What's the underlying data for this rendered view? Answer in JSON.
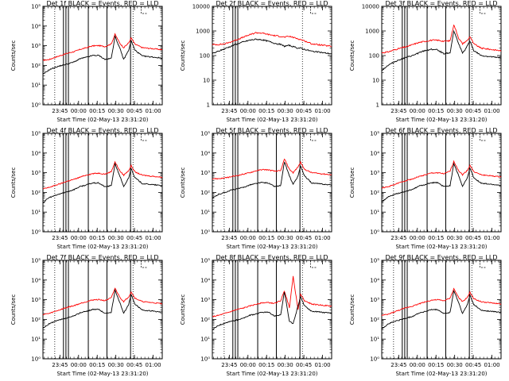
{
  "chart_data": [
    {
      "type": "line",
      "title": "Det 1f BLACK = Events, RED = LLD",
      "ylabel": "Counts/sec",
      "xlabel": "Start Time (02-May-13 23:31:20)",
      "x_ticks": [
        "23:45",
        "00:00",
        "00:15",
        "00:30",
        "00:45",
        "01:00"
      ],
      "x_tick_values": [
        13.67,
        28.67,
        43.67,
        58.67,
        73.67,
        88.67
      ],
      "xlim": [
        0,
        96
      ],
      "y_scale": "log",
      "ylim": [
        1,
        100000
      ],
      "y_ticks": [
        "10⁰",
        "10¹",
        "10²",
        "10³",
        "10⁴",
        "10⁵"
      ],
      "y_tick_values": [
        1,
        10,
        100,
        1000,
        10000,
        100000
      ],
      "dotted_lines": [
        9.5,
        20.5,
        72.5
      ],
      "solid_lines": [
        16.5,
        18.5,
        20.5,
        36.5,
        51.5,
        70.5
      ],
      "red_y": [
        180,
        200,
        260,
        330,
        420,
        500,
        650,
        800,
        980,
        1020,
        900,
        1250,
        3800,
        1300,
        800,
        1400,
        2500,
        1200,
        800
      ],
      "black_y": [
        35,
        60,
        80,
        100,
        120,
        150,
        220,
        260,
        320,
        320,
        200,
        230,
        3000,
        700,
        200,
        600,
        1800,
        600,
        300
      ],
      "series": [
        {
          "name": "BLACK = Events",
          "color": "#000000"
        },
        {
          "name": "RED = LLD",
          "color": "#ff0000"
        }
      ],
      "dashed_inset": true
    },
    {
      "type": "line",
      "title": "Det 2f BLACK = Events, RED = LLD",
      "ylabel": "Counts/sec",
      "xlabel": "Start Time (02-May-13 23:31:20)",
      "x_ticks": [
        "23:45",
        "00:00",
        "00:15",
        "00:30",
        "00:45",
        "01:00"
      ],
      "x_tick_values": [
        13.67,
        28.67,
        43.67,
        58.67,
        73.67,
        88.67
      ],
      "xlim": [
        0,
        96
      ],
      "y_scale": "log",
      "ylim": [
        1,
        10000
      ],
      "y_ticks": [
        "1",
        "10",
        "100",
        "1000",
        "10000"
      ],
      "y_tick_values": [
        1,
        10,
        100,
        1000,
        10000
      ],
      "dotted_lines": [
        9.5,
        20.5,
        72.5
      ],
      "solid_lines": [
        16.5,
        18.5,
        20.5
      ],
      "red_y": [
        280,
        280,
        300,
        360,
        450,
        560,
        700,
        850,
        820,
        720,
        650,
        600,
        560,
        600,
        550,
        480,
        450,
        400,
        300
      ],
      "black_y": [
        120,
        150,
        190,
        240,
        300,
        360,
        420,
        460,
        440,
        380,
        320,
        280,
        240,
        260,
        230,
        200,
        200,
        180,
        150
      ],
      "series": [
        {
          "name": "BLACK = Events",
          "color": "#000000"
        },
        {
          "name": "RED = LLD",
          "color": "#ff0000"
        }
      ],
      "dashed_inset": true
    },
    {
      "type": "line",
      "title": "Det 3f BLACK = Events, RED = LLD",
      "ylabel": "Counts/sec",
      "xlabel": "Start Time (02-May-13 23:31:20)",
      "x_ticks": [
        "23:45",
        "00:00",
        "00:15",
        "00:30",
        "00:45",
        "01:00"
      ],
      "x_tick_values": [
        13.67,
        28.67,
        43.67,
        58.67,
        73.67,
        88.67
      ],
      "xlim": [
        0,
        96
      ],
      "y_scale": "log",
      "ylim": [
        1,
        10000
      ],
      "y_ticks": [
        "1",
        "10",
        "100",
        "1000",
        "10000"
      ],
      "y_tick_values": [
        1,
        10,
        100,
        1000,
        10000
      ],
      "dotted_lines": [
        9.5,
        20.5,
        72.5
      ],
      "solid_lines": [
        16.5,
        18.5,
        20.5,
        36.5,
        51.5,
        70.5
      ],
      "red_y": [
        130,
        140,
        170,
        200,
        230,
        280,
        340,
        380,
        420,
        420,
        380,
        400,
        1800,
        500,
        300,
        420,
        600,
        300,
        200
      ],
      "black_y": [
        25,
        40,
        55,
        70,
        85,
        100,
        130,
        160,
        180,
        170,
        120,
        130,
        1000,
        300,
        120,
        250,
        400,
        160,
        100
      ],
      "series": [
        {
          "name": "BLACK = Events",
          "color": "#000000"
        },
        {
          "name": "RED = LLD",
          "color": "#ff0000"
        }
      ],
      "dashed_inset": true
    },
    {
      "type": "line",
      "title": "Det 4f BLACK = Events, RED = LLD",
      "ylabel": "Counts/sec",
      "xlabel": "Start Time (02-May-13 23:31:20)",
      "x_ticks": [
        "23:45",
        "00:00",
        "00:15",
        "00:30",
        "00:45",
        "01:00"
      ],
      "x_tick_values": [
        13.67,
        28.67,
        43.67,
        58.67,
        73.67,
        88.67
      ],
      "xlim": [
        0,
        96
      ],
      "y_scale": "log",
      "ylim": [
        1,
        100000
      ],
      "y_ticks": [
        "10⁰",
        "10¹",
        "10²",
        "10³",
        "10⁴",
        "10⁵"
      ],
      "y_tick_values": [
        1,
        10,
        100,
        1000,
        10000,
        100000
      ],
      "dotted_lines": [
        9.5,
        20.5,
        72.5
      ],
      "solid_lines": [
        16.5,
        18.5,
        20.5,
        36.5,
        51.5,
        70.5
      ],
      "red_y": [
        150,
        180,
        230,
        290,
        380,
        460,
        600,
        760,
        900,
        950,
        850,
        1150,
        3500,
        1200,
        750,
        1300,
        2300,
        1100,
        750
      ],
      "black_y": [
        30,
        55,
        70,
        90,
        110,
        140,
        200,
        240,
        300,
        300,
        190,
        220,
        2800,
        650,
        190,
        560,
        1700,
        560,
        280
      ],
      "series": [
        {
          "name": "BLACK = Events",
          "color": "#000000"
        },
        {
          "name": "RED = LLD",
          "color": "#ff0000"
        }
      ],
      "dashed_inset": true
    },
    {
      "type": "line",
      "title": "Det 5f BLACK = Events, RED = LLD",
      "ylabel": "Counts/sec",
      "xlabel": "Start Time (02-May-13 23:31:20)",
      "x_ticks": [
        "23:45",
        "00:00",
        "00:15",
        "00:30",
        "00:45",
        "01:00"
      ],
      "x_tick_values": [
        13.67,
        28.67,
        43.67,
        58.67,
        73.67,
        88.67
      ],
      "xlim": [
        0,
        96
      ],
      "y_scale": "log",
      "ylim": [
        1,
        100000
      ],
      "y_ticks": [
        "10⁰",
        "10¹",
        "10²",
        "10³",
        "10⁴",
        "10⁵"
      ],
      "y_tick_values": [
        1,
        10,
        100,
        1000,
        10000,
        100000
      ],
      "dotted_lines": [
        9.5,
        20.5,
        72.5
      ],
      "solid_lines": [
        16.5,
        18.5,
        20.5,
        36.5,
        51.5,
        70.5
      ],
      "red_y": [
        500,
        500,
        540,
        620,
        720,
        850,
        1000,
        1250,
        1450,
        1400,
        1200,
        1250,
        5000,
        1500,
        1000,
        2000,
        3500,
        1500,
        1000
      ],
      "black_y": [
        50,
        80,
        100,
        130,
        150,
        180,
        240,
        280,
        320,
        300,
        200,
        220,
        3500,
        700,
        250,
        700,
        2200,
        700,
        300
      ],
      "series": [
        {
          "name": "BLACK = Events",
          "color": "#000000"
        },
        {
          "name": "RED = LLD",
          "color": "#ff0000"
        }
      ],
      "dashed_inset": true
    },
    {
      "type": "line",
      "title": "Det 6f BLACK = Events, RED = LLD",
      "ylabel": "Counts/sec",
      "xlabel": "Start Time (02-May-13 23:31:20)",
      "x_ticks": [
        "23:45",
        "00:00",
        "00:15",
        "00:30",
        "00:45",
        "01:00"
      ],
      "x_tick_values": [
        13.67,
        28.67,
        43.67,
        58.67,
        73.67,
        88.67
      ],
      "xlim": [
        0,
        96
      ],
      "y_scale": "log",
      "ylim": [
        1,
        100000
      ],
      "y_ticks": [
        "10⁰",
        "10¹",
        "10²",
        "10³",
        "10⁴",
        "10⁵"
      ],
      "y_tick_values": [
        1,
        10,
        100,
        1000,
        10000,
        100000
      ],
      "dotted_lines": [
        9.5,
        20.5,
        72.5
      ],
      "solid_lines": [
        16.5,
        18.5,
        20.5,
        36.5,
        51.5,
        70.5
      ],
      "red_y": [
        170,
        190,
        250,
        320,
        410,
        490,
        640,
        780,
        960,
        1000,
        880,
        1200,
        3700,
        1250,
        780,
        1350,
        2400,
        1150,
        780
      ],
      "black_y": [
        32,
        58,
        78,
        95,
        115,
        145,
        210,
        250,
        310,
        310,
        195,
        225,
        2900,
        680,
        195,
        580,
        1750,
        580,
        290
      ],
      "series": [
        {
          "name": "BLACK = Events",
          "color": "#000000"
        },
        {
          "name": "RED = LLD",
          "color": "#ff0000"
        }
      ],
      "dashed_inset": true
    },
    {
      "type": "line",
      "title": "Det 7f BLACK = Events, RED = LLD",
      "ylabel": "Counts/sec",
      "xlabel": "Start Time (02-May-13 23:31:20)",
      "x_ticks": [
        "23:45",
        "00:00",
        "00:15",
        "00:30",
        "00:45",
        "01:00"
      ],
      "x_tick_values": [
        13.67,
        28.67,
        43.67,
        58.67,
        73.67,
        88.67
      ],
      "xlim": [
        0,
        96
      ],
      "y_scale": "log",
      "ylim": [
        1,
        100000
      ],
      "y_ticks": [
        "10⁰",
        "10¹",
        "10²",
        "10³",
        "10⁴",
        "10⁵"
      ],
      "y_tick_values": [
        1,
        10,
        100,
        1000,
        10000,
        100000
      ],
      "dotted_lines": [
        9.5,
        20.5,
        72.5
      ],
      "solid_lines": [
        16.5,
        18.5,
        20.5,
        36.5,
        51.5,
        70.5
      ],
      "red_y": [
        180,
        200,
        260,
        330,
        420,
        500,
        650,
        800,
        980,
        1020,
        900,
        1250,
        3800,
        1300,
        800,
        1400,
        2500,
        1200,
        800
      ],
      "black_y": [
        35,
        60,
        80,
        100,
        120,
        150,
        220,
        260,
        320,
        320,
        200,
        230,
        3000,
        700,
        200,
        600,
        1800,
        600,
        300
      ],
      "series": [
        {
          "name": "BLACK = Events",
          "color": "#000000"
        },
        {
          "name": "RED = LLD",
          "color": "#ff0000"
        }
      ],
      "dashed_inset": true
    },
    {
      "type": "line",
      "title": "Det 8f BLACK = Events, RED = LLD",
      "ylabel": "Counts/sec",
      "xlabel": "Start Time (02-May-13 23:31:20)",
      "x_ticks": [
        "23:45",
        "00:00",
        "00:15",
        "00:30",
        "00:45",
        "01:00"
      ],
      "x_tick_values": [
        13.67,
        28.67,
        43.67,
        58.67,
        73.67,
        88.67
      ],
      "xlim": [
        0,
        96
      ],
      "y_scale": "log",
      "ylim": [
        1,
        100000
      ],
      "y_ticks": [
        "10⁰",
        "10¹",
        "10²",
        "10³",
        "10⁴",
        "10⁵"
      ],
      "y_tick_values": [
        1,
        10,
        100,
        1000,
        10000,
        100000
      ],
      "dotted_lines": [
        9.5,
        20.5,
        72.5
      ],
      "solid_lines": [
        16.5,
        18.5,
        20.5,
        36.5,
        51.5,
        70.5
      ],
      "red_y": [
        140,
        160,
        200,
        250,
        320,
        380,
        480,
        580,
        700,
        720,
        650,
        900,
        2800,
        400,
        15000,
        300,
        2000,
        900,
        600
      ],
      "black_y": [
        30,
        50,
        65,
        80,
        95,
        115,
        160,
        190,
        230,
        230,
        150,
        170,
        2500,
        80,
        60,
        500,
        1500,
        500,
        260
      ],
      "series": [
        {
          "name": "BLACK = Events",
          "color": "#000000"
        },
        {
          "name": "RED = LLD",
          "color": "#ff0000"
        }
      ],
      "dashed_inset": true
    },
    {
      "type": "line",
      "title": "Det 9f BLACK = Events, RED = LLD",
      "ylabel": "Counts/sec",
      "xlabel": "Start Time (02-May-13 23:31:20)",
      "x_ticks": [
        "23:45",
        "00:00",
        "00:15",
        "00:30",
        "00:45",
        "01:00"
      ],
      "x_tick_values": [
        13.67,
        28.67,
        43.67,
        58.67,
        73.67,
        88.67
      ],
      "xlim": [
        0,
        96
      ],
      "y_scale": "log",
      "ylim": [
        1,
        100000
      ],
      "y_ticks": [
        "10⁰",
        "10¹",
        "10²",
        "10³",
        "10⁴",
        "10⁵"
      ],
      "y_tick_values": [
        1,
        10,
        100,
        1000,
        10000,
        100000
      ],
      "dotted_lines": [
        9.5,
        20.5,
        72.5
      ],
      "solid_lines": [
        16.5,
        18.5,
        20.5,
        36.5,
        51.5,
        70.5
      ],
      "red_y": [
        160,
        180,
        240,
        310,
        400,
        480,
        620,
        780,
        950,
        1000,
        880,
        1200,
        3600,
        1250,
        780,
        1350,
        2400,
        1150,
        780
      ],
      "black_y": [
        33,
        58,
        78,
        96,
        116,
        146,
        212,
        252,
        312,
        312,
        196,
        226,
        2900,
        680,
        196,
        580,
        1750,
        580,
        290
      ],
      "series": [
        {
          "name": "BLACK = Events",
          "color": "#000000"
        },
        {
          "name": "RED = LLD",
          "color": "#ff0000"
        }
      ],
      "dashed_inset": true
    }
  ]
}
